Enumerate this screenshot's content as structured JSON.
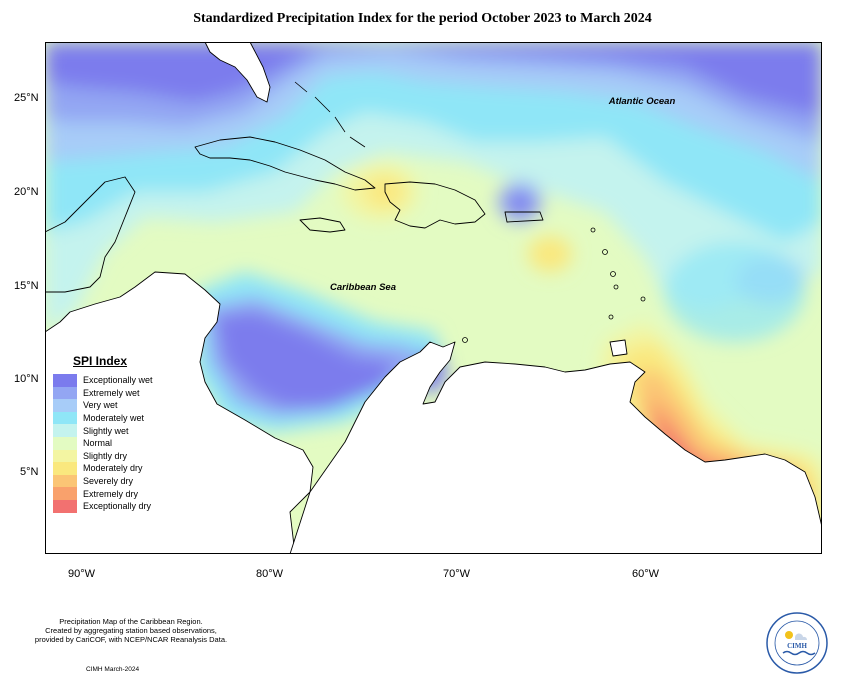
{
  "title": "Standardized Precipitation Index for the period October 2023 to March 2024",
  "map": {
    "labels": {
      "ocean": "Atlantic Ocean",
      "sea": "Caribbean Sea"
    },
    "lon_ticks": [
      "90°W",
      "80°W",
      "70°W",
      "60°W"
    ],
    "lat_ticks": [
      "25°N",
      "20°N",
      "15°N",
      "10°N",
      "5°N"
    ]
  },
  "legend": {
    "title": "SPI Index",
    "items": [
      {
        "label": "Exceptionally wet",
        "color": "#7b7bed"
      },
      {
        "label": "Extremely wet",
        "color": "#93a6f3"
      },
      {
        "label": "Very wet",
        "color": "#a7ccf8"
      },
      {
        "label": "Moderately wet",
        "color": "#8fe6f7"
      },
      {
        "label": "Slightly wet",
        "color": "#c4f3ee"
      },
      {
        "label": "Normal",
        "color": "#e3fbc2"
      },
      {
        "label": "Slightly dry",
        "color": "#f3f5a2"
      },
      {
        "label": "Moderately dry",
        "color": "#fae87e"
      },
      {
        "label": "Severely dry",
        "color": "#fbc575"
      },
      {
        "label": "Extremely dry",
        "color": "#f9a16c"
      },
      {
        "label": "Exceptionally dry",
        "color": "#f27170"
      }
    ]
  },
  "footer": {
    "note_line1": "Precipitation Map of the Caribbean Region.",
    "note_line2": "Created by aggregating station based observations,",
    "note_line3": "provided by CariCOF, with NCEP/NCAR Reanalysis Data.",
    "credit": "CIMH March-2024",
    "logo_text": "CIMH",
    "logo_ring_text": "Caribbean Institute for Meteorology and Hydrology"
  }
}
